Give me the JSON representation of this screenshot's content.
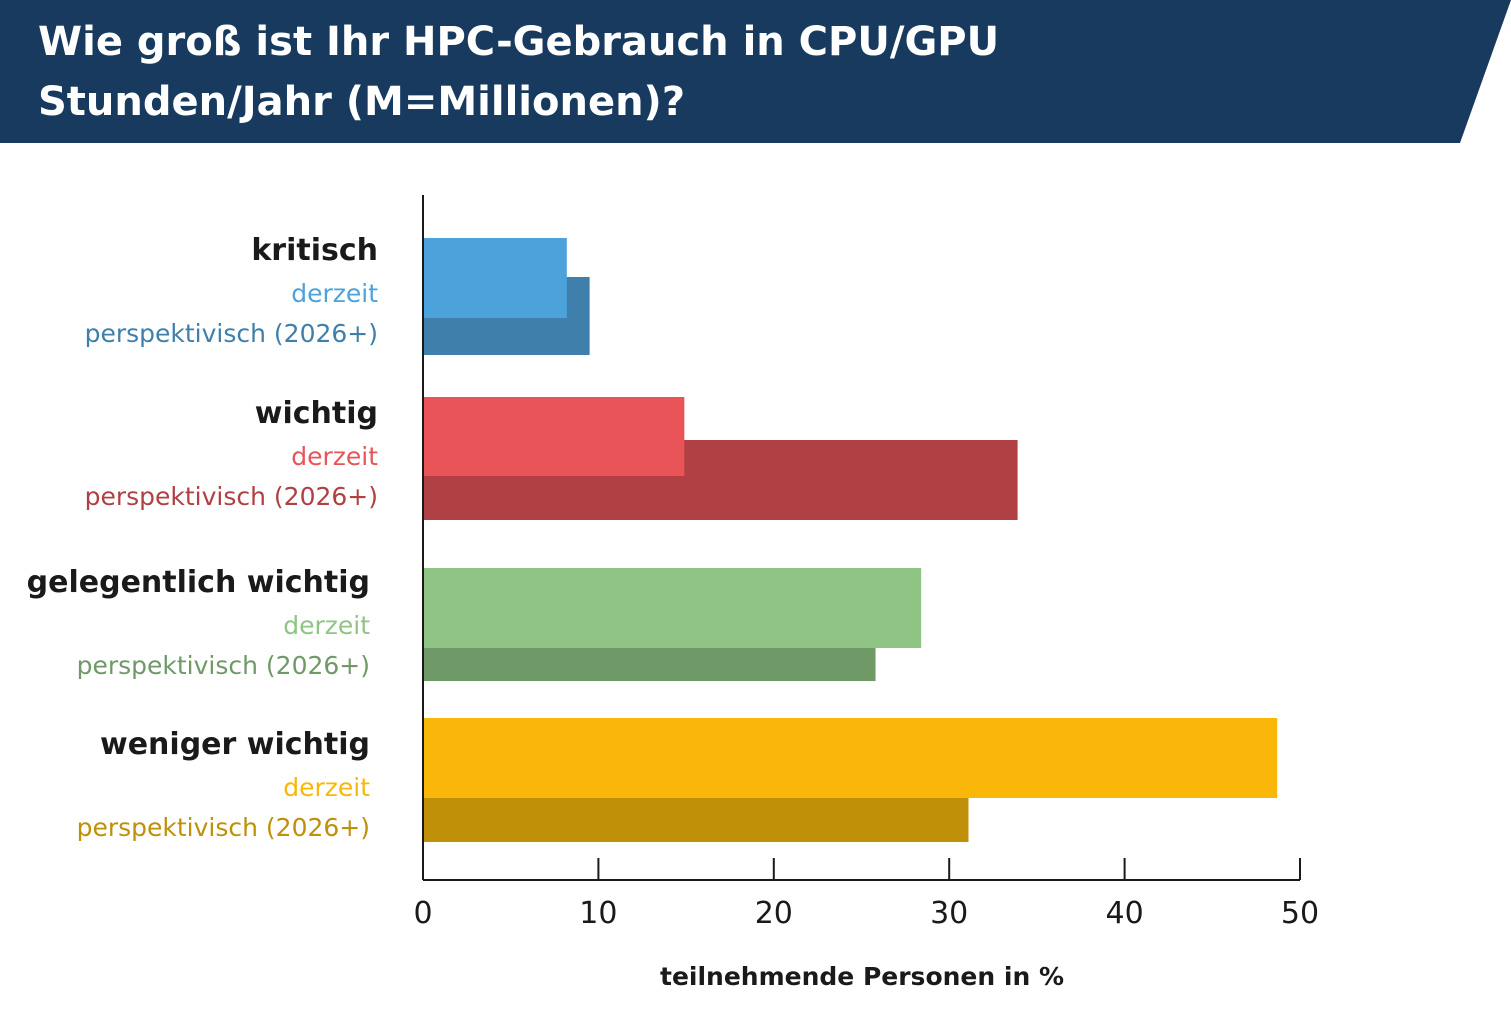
{
  "title": {
    "line1": "Wie groß ist Ihr HPC-Gebrauch in CPU/GPU",
    "line2": "Stunden/Jahr (M=Millionen)?"
  },
  "colors": {
    "banner": "#173a5e",
    "axis": "#1a1a1a"
  },
  "chart_data": {
    "type": "bar",
    "orientation": "horizontal",
    "title": "Wie groß ist Ihr HPC-Gebrauch in CPU/GPU Stunden/Jahr (M=Millionen)?",
    "xlabel": "teilnehmende Personen in %",
    "xlim": [
      0,
      50
    ],
    "xticks": [
      0,
      10,
      20,
      30,
      40,
      50
    ],
    "grid": false,
    "categories": [
      {
        "label": "kritisch",
        "series": [
          {
            "name": "derzeit",
            "value": 8.2,
            "color": "#4ca3dc"
          },
          {
            "name": "perspektivisch (2026+)",
            "value": 9.5,
            "color": "#3e80ab"
          }
        ]
      },
      {
        "label": "wichtig",
        "series": [
          {
            "name": "derzeit",
            "value": 14.9,
            "color": "#e85458"
          },
          {
            "name": "perspektivisch (2026+)",
            "value": 33.9,
            "color": "#b04043"
          }
        ]
      },
      {
        "label": "gelegentlich wichtig",
        "series": [
          {
            "name": "derzeit",
            "value": 28.4,
            "color": "#8fc485"
          },
          {
            "name": "perspektivisch (2026+)",
            "value": 25.8,
            "color": "#6f9a68"
          }
        ]
      },
      {
        "label": "weniger wichtig",
        "series": [
          {
            "name": "derzeit",
            "value": 48.7,
            "color": "#f8b709"
          },
          {
            "name": "perspektivisch (2026+)",
            "value": 31.1,
            "color": "#bf9008"
          }
        ]
      }
    ]
  }
}
